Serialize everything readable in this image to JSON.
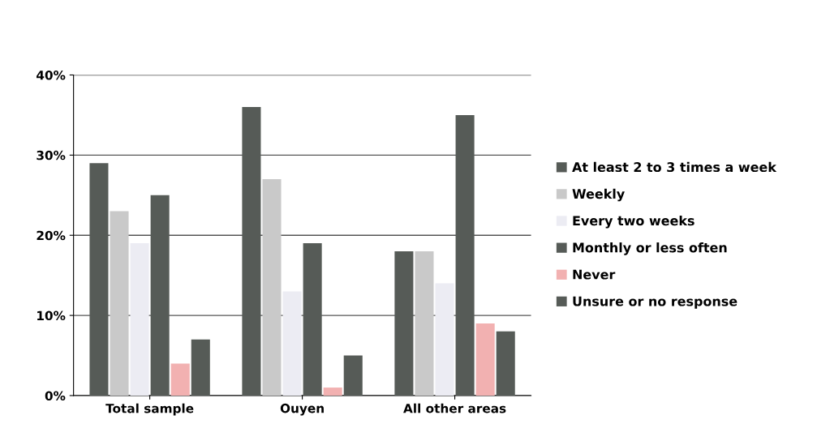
{
  "chart_data": {
    "type": "bar",
    "categories": [
      "Total sample",
      "Ouyen",
      "All other areas"
    ],
    "series": [
      {
        "name": "At least 2 to 3 times a week",
        "color": "#565b57",
        "values": [
          29,
          36,
          18
        ]
      },
      {
        "name": "Weekly",
        "color": "#c9c9c9",
        "values": [
          23,
          27,
          18
        ]
      },
      {
        "name": "Every two weeks",
        "color": "#ececf3",
        "values": [
          19,
          13,
          14
        ]
      },
      {
        "name": "Monthly or less often",
        "color": "#565b57",
        "values": [
          25,
          19,
          35
        ]
      },
      {
        "name": "Never",
        "color": "#f2b1b1",
        "values": [
          4,
          1,
          9
        ]
      },
      {
        "name": "Unsure or no response",
        "color": "#565b57",
        "values": [
          7,
          5,
          8
        ]
      }
    ],
    "ylim": [
      0,
      40
    ],
    "yticks": [
      {
        "value": 0,
        "label": "0%"
      },
      {
        "value": 10,
        "label": "10%"
      },
      {
        "value": 20,
        "label": "20%"
      },
      {
        "value": 30,
        "label": "30%"
      },
      {
        "value": 40,
        "label": "40%"
      }
    ],
    "grid": "y",
    "legend": "right"
  }
}
